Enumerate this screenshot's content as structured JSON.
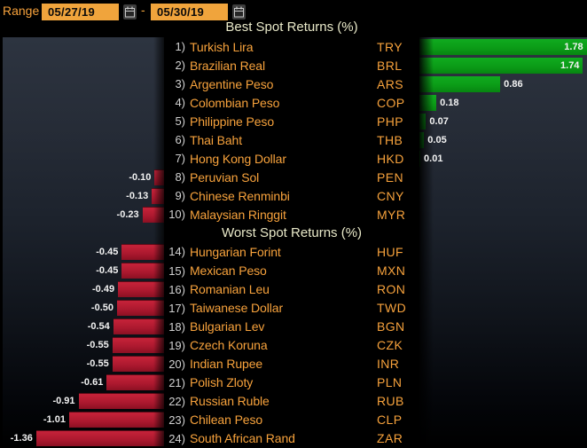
{
  "toolbar": {
    "range_label": "Range",
    "date_start": "05/27/19",
    "date_end": "05/30/19",
    "separator": "-",
    "calendar_icon": "calendar"
  },
  "chart_data": {
    "type": "bar",
    "orientation": "horizontal",
    "unit": "%",
    "value_range": [
      -1.36,
      1.78
    ],
    "grid": "off",
    "sections": [
      {
        "title": "Best Spot Returns (%)",
        "rows": [
          {
            "num": "1)",
            "name": "Turkish Lira",
            "ticker": "TRY",
            "value": 1.78,
            "label": "1.78"
          },
          {
            "num": "2)",
            "name": "Brazilian Real",
            "ticker": "BRL",
            "value": 1.74,
            "label": "1.74"
          },
          {
            "num": "3)",
            "name": "Argentine Peso",
            "ticker": "ARS",
            "value": 0.86,
            "label": "0.86"
          },
          {
            "num": "4)",
            "name": "Colombian Peso",
            "ticker": "COP",
            "value": 0.18,
            "label": "0.18"
          },
          {
            "num": "5)",
            "name": "Philippine Peso",
            "ticker": "PHP",
            "value": 0.07,
            "label": "0.07"
          },
          {
            "num": "6)",
            "name": "Thai Baht",
            "ticker": "THB",
            "value": 0.05,
            "label": "0.05"
          },
          {
            "num": "7)",
            "name": "Hong Kong Dollar",
            "ticker": "HKD",
            "value": 0.01,
            "label": "0.01"
          },
          {
            "num": "8)",
            "name": "Peruvian Sol",
            "ticker": "PEN",
            "value": -0.1,
            "label": "-0.10"
          },
          {
            "num": "9)",
            "name": "Chinese Renminbi",
            "ticker": "CNY",
            "value": -0.13,
            "label": "-0.13"
          },
          {
            "num": "10)",
            "name": "Malaysian Ringgit",
            "ticker": "MYR",
            "value": -0.23,
            "label": "-0.23"
          }
        ]
      },
      {
        "title": "Worst Spot Returns (%)",
        "rows": [
          {
            "num": "14)",
            "name": "Hungarian Forint",
            "ticker": "HUF",
            "value": -0.45,
            "label": "-0.45"
          },
          {
            "num": "15)",
            "name": "Mexican Peso",
            "ticker": "MXN",
            "value": -0.45,
            "label": "-0.45"
          },
          {
            "num": "16)",
            "name": "Romanian Leu",
            "ticker": "RON",
            "value": -0.49,
            "label": "-0.49"
          },
          {
            "num": "17)",
            "name": "Taiwanese Dollar",
            "ticker": "TWD",
            "value": -0.5,
            "label": "-0.50"
          },
          {
            "num": "18)",
            "name": "Bulgarian Lev",
            "ticker": "BGN",
            "value": -0.54,
            "label": "-0.54"
          },
          {
            "num": "19)",
            "name": "Czech Koruna",
            "ticker": "CZK",
            "value": -0.55,
            "label": "-0.55"
          },
          {
            "num": "20)",
            "name": "Indian Rupee",
            "ticker": "INR",
            "value": -0.55,
            "label": "-0.55"
          },
          {
            "num": "21)",
            "name": "Polish Zloty",
            "ticker": "PLN",
            "value": -0.61,
            "label": "-0.61"
          },
          {
            "num": "22)",
            "name": "Russian Ruble",
            "ticker": "RUB",
            "value": -0.91,
            "label": "-0.91"
          },
          {
            "num": "23)",
            "name": "Chilean Peso",
            "ticker": "CLP",
            "value": -1.01,
            "label": "-1.01"
          },
          {
            "num": "24)",
            "name": "South African Rand",
            "ticker": "ZAR",
            "value": -1.36,
            "label": "-1.36"
          }
        ]
      }
    ],
    "colors": {
      "positive_bar": "#0c9e19",
      "negative_bar": "#b11b30",
      "name_text": "#f7a23c",
      "number_text": "#d2d2d2",
      "header_text": "#e9e9c9",
      "value_label": "#f2f2f2",
      "date_field_bg": "#f0a43c",
      "panel_top": "#2d3440",
      "background": "#000000"
    }
  }
}
